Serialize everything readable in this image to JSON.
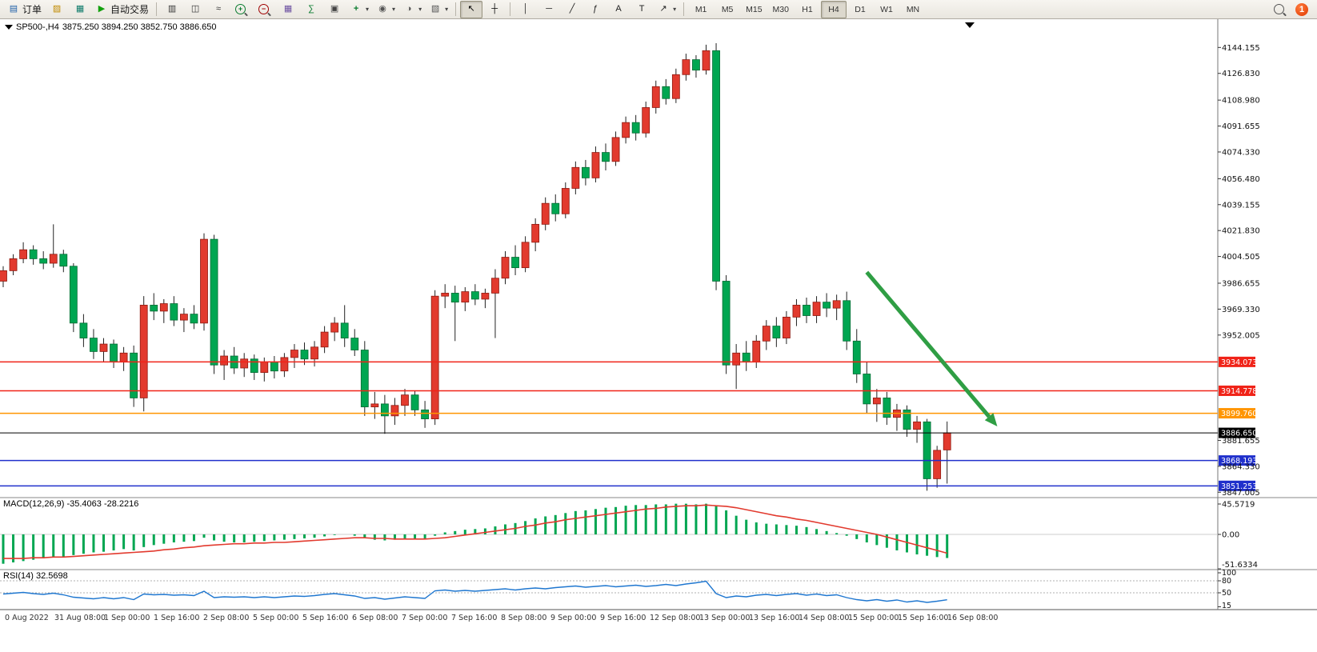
{
  "toolbar": {
    "order_label": "订单",
    "autotrading_label": "自动交易",
    "badge_count": "1",
    "active_timeframe": "H4",
    "timeframes": [
      "M1",
      "M5",
      "M15",
      "M30",
      "H1",
      "H4",
      "D1",
      "W1",
      "MN"
    ],
    "icon_glyphs": {
      "order-icon": "▤",
      "toolbox-icon": "▨",
      "market-icon": "▦",
      "autotrading-icon": "▶",
      "bar-chart-icon": "▥",
      "candle-chart-icon": "◫",
      "line-chart-icon": "≈",
      "tile-windows-icon": "▦",
      "indicators-icon": "∑",
      "arrange-icon": "▣",
      "new-chart-icon": "+",
      "profiles-icon": "◉",
      "period-icon": "◑",
      "template-icon": "▧",
      "cursor-icon": "↖",
      "crosshair-icon": "┼",
      "vline-icon": "│",
      "hline-icon": "─",
      "trendline-icon": "╱",
      "fibo-icon": "ƒ",
      "text-icon": "A",
      "label-icon": "T",
      "arrows-icon": "↗"
    },
    "groups": [
      {
        "items": [
          {
            "name": "new-order-button",
            "icon": "order-icon",
            "color": "#1f5fa8",
            "label": "订单"
          },
          {
            "name": "toolbox-button",
            "icon": "toolbox-icon",
            "color": "#c08a00"
          },
          {
            "name": "market-button",
            "icon": "market-icon",
            "color": "#0d7a6a"
          },
          {
            "name": "autotrading-button",
            "icon": "autotrading-icon",
            "color": "#13a10e",
            "label": "自动交易"
          }
        ]
      },
      {
        "items": [
          {
            "name": "bar-chart-button",
            "icon": "bar-chart-icon",
            "color": "#333333"
          },
          {
            "name": "candlestick-chart-button",
            "icon": "candle-chart-icon",
            "color": "#333333"
          },
          {
            "name": "line-chart-button",
            "icon": "line-chart-icon",
            "color": "#333333"
          },
          {
            "name": "zoom-in-button",
            "mag": "+",
            "color": "#0a7c2f"
          },
          {
            "name": "zoom-out-button",
            "mag": "−",
            "color": "#a00000"
          },
          {
            "name": "tile-windows-button",
            "icon": "tile-windows-icon",
            "color": "#6b4fa0"
          },
          {
            "name": "indicators-button",
            "icon": "indicators-icon",
            "color": "#0a7c2f"
          },
          {
            "name": "auto-arrange-button",
            "icon": "arrange-icon",
            "color": "#444444"
          },
          {
            "name": "new-chart-button",
            "icon": "new-chart-icon",
            "color": "#0a7c2f",
            "dropdown": true
          },
          {
            "name": "profiles-button",
            "icon": "profiles-icon",
            "color": "#555555",
            "dropdown": true
          },
          {
            "name": "period-button",
            "icon": "period-icon",
            "color": "#555555",
            "dropdown": true
          },
          {
            "name": "templates-button",
            "icon": "template-icon",
            "color": "#555555",
            "dropdown": true
          }
        ]
      },
      {
        "items": [
          {
            "name": "cursor-button",
            "icon": "cursor-icon",
            "color": "#000000",
            "pressed": true
          },
          {
            "name": "crosshair-button",
            "icon": "crosshair-icon",
            "color": "#000000"
          }
        ]
      },
      {
        "items": [
          {
            "name": "vertical-line-button",
            "icon": "vline-icon",
            "color": "#222222"
          },
          {
            "name": "horizontal-line-button",
            "icon": "hline-icon",
            "color": "#222222"
          },
          {
            "name": "trendline-button",
            "icon": "trendline-icon",
            "color": "#222222"
          },
          {
            "name": "fibonacci-button",
            "icon": "fibo-icon",
            "color": "#222222"
          },
          {
            "name": "text-button",
            "icon": "text-icon",
            "color": "#222222"
          },
          {
            "name": "label-button",
            "icon": "label-icon",
            "color": "#222222"
          },
          {
            "name": "arrows-button",
            "icon": "arrows-icon",
            "color": "#222222",
            "dropdown": true
          }
        ]
      }
    ]
  },
  "chart": {
    "symbol": "SP500-,H4",
    "ohlc": "3875.250 3894.250 3852.750 3886.650"
  },
  "indicators": {
    "macd": {
      "label": "MACD(12,26,9) -35.4063 -28.2216"
    },
    "rsi": {
      "label": "RSI(14) 32.5698"
    }
  },
  "hlines": [
    {
      "price": 3934.073,
      "label": "3934.073",
      "color": "#f02318",
      "name": "resistance-line-1"
    },
    {
      "price": 3914.778,
      "label": "3914.778",
      "color": "#f02318",
      "name": "resistance-line-2"
    },
    {
      "price": 3899.76,
      "label": "3899.760",
      "color": "#ff9500",
      "name": "pivot-line"
    },
    {
      "price": 3886.65,
      "label": "3886.650",
      "color": "#000000",
      "name": "bid-price-line"
    },
    {
      "price": 3868.193,
      "label": "3868.193",
      "color": "#2030cc",
      "name": "support-line-1"
    },
    {
      "price": 3851.253,
      "label": "3851.253",
      "color": "#2030cc",
      "name": "support-line-2"
    }
  ],
  "time_axis": [
    "0 Aug 2022",
    "31 Aug 08:00",
    "1 Sep 00:00",
    "1 Sep 16:00",
    "2 Sep 08:00",
    "5 Sep 00:00",
    "5 Sep 16:00",
    "6 Sep 08:00",
    "7 Sep 00:00",
    "7 Sep 16:00",
    "8 Sep 08:00",
    "9 Sep 00:00",
    "9 Sep 16:00",
    "12 Sep 08:00",
    "13 Sep 00:00",
    "13 Sep 16:00",
    "14 Sep 08:00",
    "15 Sep 00:00",
    "15 Sep 16:00",
    "16 Sep 08:00"
  ],
  "chart_data": {
    "type": "candlestick",
    "symbol": "SP500-",
    "timeframe": "H4",
    "up_color": "#e23a2e",
    "up_border": "#8f1a10",
    "down_color": "#00a651",
    "down_border": "#036b33",
    "price_axis_ticks": [
      "4144.155",
      "4126.830",
      "4108.980",
      "4091.655",
      "4074.330",
      "4056.480",
      "4039.155",
      "4021.830",
      "4004.505",
      "3986.655",
      "3969.330",
      "3952.005",
      "3881.655",
      "3864.330",
      "3847.005"
    ],
    "candles": [
      [
        3988,
        3998,
        3984,
        3995
      ],
      [
        3995,
        4006,
        3992,
        4003
      ],
      [
        4003,
        4014,
        4000,
        4009
      ],
      [
        4009,
        4012,
        3999,
        4003
      ],
      [
        4003,
        4008,
        3996,
        4000
      ],
      [
        4000,
        4026,
        3997,
        4006
      ],
      [
        4006,
        4009,
        3994,
        3998
      ],
      [
        3998,
        4000,
        3954,
        3960
      ],
      [
        3960,
        3966,
        3944,
        3950
      ],
      [
        3950,
        3956,
        3936,
        3941
      ],
      [
        3941,
        3950,
        3934,
        3946
      ],
      [
        3946,
        3949,
        3930,
        3934
      ],
      [
        3934,
        3944,
        3928,
        3940
      ],
      [
        3940,
        3945,
        3904,
        3910
      ],
      [
        3910,
        3978,
        3901,
        3972
      ],
      [
        3972,
        3980,
        3962,
        3968
      ],
      [
        3968,
        3976,
        3960,
        3973
      ],
      [
        3973,
        3978,
        3958,
        3962
      ],
      [
        3962,
        3970,
        3954,
        3966
      ],
      [
        3966,
        3972,
        3956,
        3960
      ],
      [
        3960,
        4020,
        3955,
        4016
      ],
      [
        4016,
        4019,
        3926,
        3932
      ],
      [
        3932,
        3942,
        3922,
        3938
      ],
      [
        3938,
        3944,
        3926,
        3930
      ],
      [
        3930,
        3940,
        3924,
        3936
      ],
      [
        3936,
        3939,
        3922,
        3927
      ],
      [
        3927,
        3937,
        3921,
        3934
      ],
      [
        3934,
        3938,
        3923,
        3928
      ],
      [
        3928,
        3940,
        3924,
        3937
      ],
      [
        3937,
        3946,
        3930,
        3942
      ],
      [
        3942,
        3947,
        3932,
        3936
      ],
      [
        3936,
        3948,
        3931,
        3944
      ],
      [
        3944,
        3958,
        3940,
        3954
      ],
      [
        3954,
        3964,
        3948,
        3960
      ],
      [
        3960,
        3972,
        3944,
        3950
      ],
      [
        3950,
        3956,
        3938,
        3942
      ],
      [
        3942,
        3948,
        3898,
        3904
      ],
      [
        3904,
        3914,
        3896,
        3906
      ],
      [
        3906,
        3912,
        3886,
        3898
      ],
      [
        3898,
        3910,
        3892,
        3905
      ],
      [
        3905,
        3916,
        3898,
        3912
      ],
      [
        3912,
        3915,
        3898,
        3902
      ],
      [
        3902,
        3908,
        3890,
        3896
      ],
      [
        3896,
        3982,
        3892,
        3978
      ],
      [
        3978,
        3986,
        3970,
        3980
      ],
      [
        3980,
        3985,
        3948,
        3974
      ],
      [
        3974,
        3984,
        3968,
        3981
      ],
      [
        3981,
        3986,
        3972,
        3976
      ],
      [
        3976,
        3983,
        3970,
        3980
      ],
      [
        3980,
        3996,
        3950,
        3990
      ],
      [
        3990,
        4008,
        3986,
        4004
      ],
      [
        4004,
        4012,
        3992,
        3997
      ],
      [
        3997,
        4018,
        3994,
        4014
      ],
      [
        4014,
        4030,
        4008,
        4026
      ],
      [
        4026,
        4044,
        4022,
        4040
      ],
      [
        4040,
        4046,
        4028,
        4033
      ],
      [
        4033,
        4054,
        4030,
        4050
      ],
      [
        4050,
        4068,
        4046,
        4064
      ],
      [
        4064,
        4069,
        4052,
        4057
      ],
      [
        4057,
        4078,
        4054,
        4074
      ],
      [
        4074,
        4080,
        4062,
        4068
      ],
      [
        4068,
        4088,
        4065,
        4084
      ],
      [
        4084,
        4098,
        4080,
        4094
      ],
      [
        4094,
        4099,
        4082,
        4087
      ],
      [
        4087,
        4108,
        4084,
        4104
      ],
      [
        4104,
        4122,
        4100,
        4118
      ],
      [
        4118,
        4123,
        4106,
        4110
      ],
      [
        4110,
        4130,
        4107,
        4126
      ],
      [
        4126,
        4140,
        4122,
        4136
      ],
      [
        4136,
        4139,
        4124,
        4129
      ],
      [
        4129,
        4146,
        4126,
        4142
      ],
      [
        4142,
        4147,
        3982,
        3988
      ],
      [
        3988,
        3992,
        3926,
        3932
      ],
      [
        3932,
        3946,
        3916,
        3940
      ],
      [
        3940,
        3948,
        3928,
        3934
      ],
      [
        3934,
        3952,
        3930,
        3948
      ],
      [
        3948,
        3962,
        3942,
        3958
      ],
      [
        3958,
        3964,
        3944,
        3950
      ],
      [
        3950,
        3968,
        3946,
        3964
      ],
      [
        3964,
        3976,
        3958,
        3972
      ],
      [
        3972,
        3977,
        3960,
        3965
      ],
      [
        3965,
        3978,
        3960,
        3974
      ],
      [
        3974,
        3980,
        3964,
        3970
      ],
      [
        3970,
        3979,
        3962,
        3975
      ],
      [
        3975,
        3981,
        3942,
        3948
      ],
      [
        3948,
        3956,
        3920,
        3926
      ],
      [
        3926,
        3934,
        3900,
        3906
      ],
      [
        3906,
        3916,
        3894,
        3910
      ],
      [
        3910,
        3914,
        3892,
        3897
      ],
      [
        3897,
        3906,
        3888,
        3902
      ],
      [
        3902,
        3905,
        3884,
        3889
      ],
      [
        3889,
        3898,
        3880,
        3894
      ],
      [
        3894,
        3896,
        3848,
        3856
      ],
      [
        3856,
        3878,
        3850,
        3875
      ],
      [
        3875.25,
        3894.25,
        3852.75,
        3886.65
      ]
    ],
    "macd": {
      "params": "12,26,9",
      "value": -35.4063,
      "signal_value": -28.2216,
      "histogram_color": "#00a651",
      "signal_color": "#e23a2e",
      "axis_ticks": [
        "45.5719",
        "0.00",
        "-51.6334"
      ],
      "histogram": [
        -44,
        -42,
        -40,
        -38,
        -36,
        -34,
        -33,
        -31,
        -29,
        -27,
        -26,
        -24,
        -22,
        -24,
        -19,
        -16,
        -14,
        -12,
        -11,
        -10,
        -5,
        -9,
        -11,
        -12,
        -12,
        -11,
        -10,
        -9,
        -8,
        -7,
        -6,
        -5,
        -3,
        -1,
        0,
        -2,
        -6,
        -8,
        -9,
        -8,
        -7,
        -6,
        -7,
        -2,
        3,
        5,
        7,
        8,
        9,
        12,
        15,
        17,
        20,
        24,
        27,
        29,
        32,
        35,
        36,
        38,
        40,
        41,
        43,
        44,
        44,
        45,
        45,
        46,
        46,
        45,
        46,
        43,
        36,
        28,
        22,
        18,
        16,
        15,
        14,
        13,
        11,
        8,
        5,
        2,
        -2,
        -7,
        -12,
        -16,
        -20,
        -24,
        -27,
        -30,
        -32,
        -34,
        -35.4
      ],
      "signal": [
        -36,
        -36,
        -36,
        -35,
        -35,
        -34,
        -34,
        -33,
        -32,
        -31,
        -30,
        -29,
        -28,
        -27,
        -26,
        -25,
        -23,
        -22,
        -20,
        -19,
        -17,
        -16,
        -15,
        -14,
        -14,
        -13,
        -13,
        -12,
        -12,
        -11,
        -10,
        -9,
        -8,
        -7,
        -6,
        -5,
        -5,
        -6,
        -6,
        -7,
        -7,
        -7,
        -7,
        -6,
        -5,
        -3,
        -1,
        1,
        3,
        5,
        7,
        9,
        12,
        14,
        17,
        19,
        22,
        24,
        26,
        28,
        30,
        32,
        34,
        36,
        38,
        39,
        41,
        42,
        43,
        43,
        44,
        43,
        42,
        40,
        37,
        34,
        31,
        28,
        26,
        23,
        21,
        18,
        15,
        12,
        9,
        6,
        3,
        0,
        -4,
        -8,
        -12,
        -16,
        -20,
        -24,
        -28.2
      ]
    },
    "rsi": {
      "period": 14,
      "value": 32.5698,
      "line_color": "#1f77d0",
      "axis_ticks": [
        "100",
        "80",
        "50",
        "15"
      ],
      "levels": [
        80,
        50
      ],
      "values": [
        47,
        49,
        51,
        48,
        46,
        49,
        45,
        39,
        37,
        35,
        38,
        35,
        38,
        33,
        47,
        45,
        46,
        44,
        45,
        43,
        54,
        38,
        40,
        39,
        40,
        38,
        40,
        38,
        40,
        42,
        41,
        43,
        46,
        48,
        45,
        42,
        36,
        38,
        34,
        37,
        40,
        38,
        36,
        55,
        57,
        54,
        56,
        54,
        56,
        58,
        60,
        57,
        60,
        62,
        60,
        63,
        65,
        67,
        64,
        66,
        68,
        65,
        67,
        69,
        66,
        68,
        71,
        68,
        72,
        75,
        79,
        48,
        38,
        42,
        40,
        44,
        46,
        43,
        46,
        48,
        44,
        47,
        43,
        45,
        38,
        33,
        30,
        33,
        29,
        32,
        27,
        30,
        26,
        29,
        32.57
      ]
    },
    "annotation": {
      "type": "arrow",
      "from": {
        "index": 86,
        "price": 3994
      },
      "to": {
        "index": 99,
        "price": 3891
      },
      "color": "#2f9e44"
    }
  }
}
